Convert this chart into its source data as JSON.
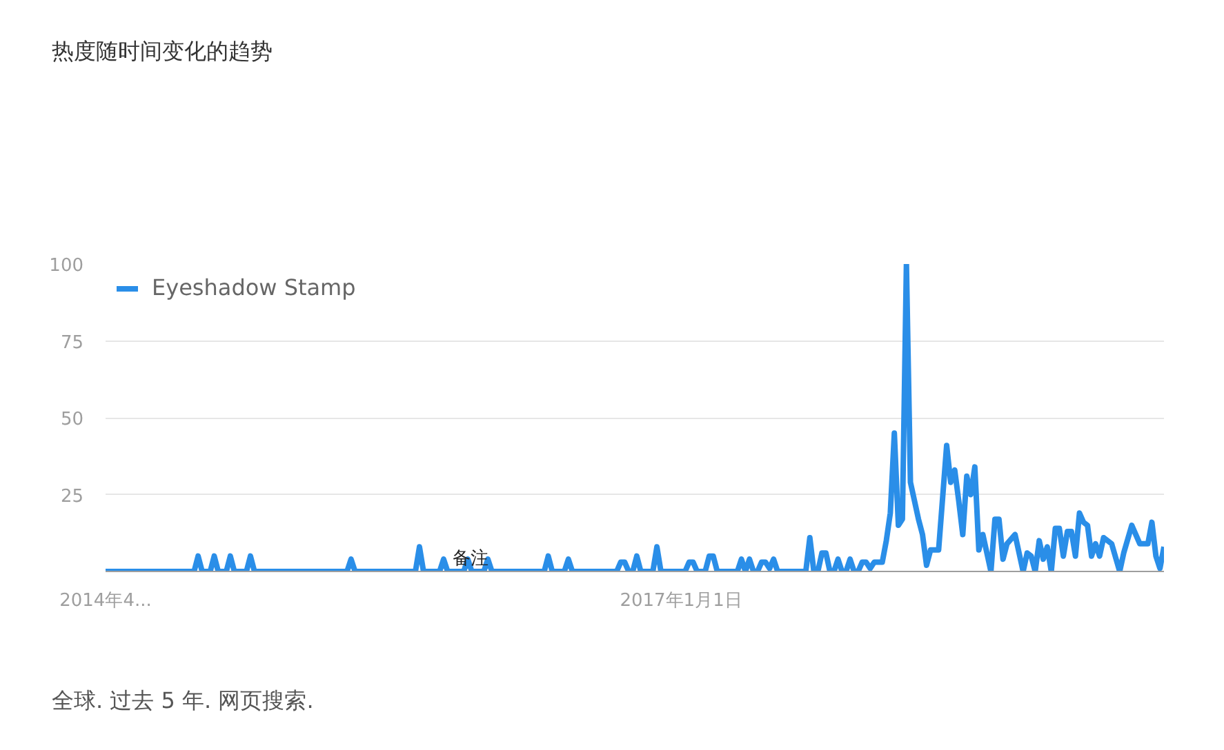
{
  "chart_data": {
    "type": "line",
    "title": "热度随时间变化的趋势",
    "x": [
      "2014-04-06",
      "2014-09-07",
      "2014-09-14",
      "2014-09-21",
      "2014-10-05",
      "2014-10-12",
      "2014-10-19",
      "2014-11-02",
      "2014-11-09",
      "2014-11-16",
      "2014-12-07",
      "2014-12-14",
      "2014-12-21",
      "2015-05-31",
      "2015-06-07",
      "2015-06-14",
      "2015-09-27",
      "2015-10-04",
      "2015-10-11",
      "2015-11-08",
      "2015-11-15",
      "2015-11-22",
      "2015-12-20",
      "2015-12-27",
      "2016-01-03",
      "2016-01-24",
      "2016-01-31",
      "2016-02-07",
      "2016-05-08",
      "2016-05-15",
      "2016-05-22",
      "2016-06-12",
      "2016-06-19",
      "2016-06-26",
      "2016-09-11",
      "2016-09-18",
      "2016-09-25",
      "2016-10-02",
      "2016-10-09",
      "2016-10-16",
      "2016-10-23",
      "2016-11-13",
      "2016-11-20",
      "2016-11-27",
      "2017-01-08",
      "2017-01-15",
      "2017-01-22",
      "2017-01-29",
      "2017-02-12",
      "2017-02-19",
      "2017-02-26",
      "2017-03-05",
      "2017-04-09",
      "2017-04-16",
      "2017-04-23",
      "2017-04-30",
      "2017-05-07",
      "2017-05-14",
      "2017-05-21",
      "2017-05-28",
      "2017-06-04",
      "2017-06-11",
      "2017-06-18",
      "2017-08-06",
      "2017-08-13",
      "2017-08-20",
      "2017-08-27",
      "2017-09-03",
      "2017-09-10",
      "2017-09-17",
      "2017-09-24",
      "2017-10-01",
      "2017-10-08",
      "2017-10-15",
      "2017-10-22",
      "2017-10-29",
      "2017-11-05",
      "2017-11-12",
      "2017-11-19",
      "2017-11-26",
      "2017-12-03",
      "2017-12-10",
      "2017-12-17",
      "2017-12-24",
      "2017-12-31",
      "2018-01-07",
      "2018-01-14",
      "2018-01-21",
      "2018-01-28",
      "2018-02-04",
      "2018-02-18",
      "2018-02-25",
      "2018-03-04",
      "2018-03-11",
      "2018-03-25",
      "2018-04-08",
      "2018-04-15",
      "2018-04-22",
      "2018-04-29",
      "2018-05-06",
      "2018-05-13",
      "2018-05-20",
      "2018-05-27",
      "2018-06-03",
      "2018-06-10",
      "2018-06-24",
      "2018-07-01",
      "2018-07-08",
      "2018-07-15",
      "2018-07-22",
      "2018-08-05",
      "2018-08-19",
      "2018-08-26",
      "2018-09-02",
      "2018-09-09",
      "2018-09-16",
      "2018-09-23",
      "2018-09-30",
      "2018-10-07",
      "2018-10-14",
      "2018-10-21",
      "2018-10-28",
      "2018-11-04",
      "2018-11-11",
      "2018-11-18",
      "2018-11-25",
      "2018-12-02",
      "2018-12-09",
      "2018-12-16",
      "2018-12-23",
      "2018-12-30",
      "2019-01-06",
      "2019-01-20",
      "2019-02-03",
      "2019-02-10",
      "2019-02-24",
      "2019-03-10",
      "2019-03-24",
      "2019-03-31",
      "2019-04-07",
      "2019-04-14",
      "2019-04-21"
    ],
    "series": [
      {
        "name": "Eyeshadow Stamp",
        "color": "#2a8ee8",
        "values": [
          0,
          0,
          5,
          0,
          0,
          5,
          0,
          0,
          5,
          0,
          0,
          5,
          0,
          0,
          4,
          0,
          0,
          8,
          0,
          0,
          4,
          0,
          0,
          4,
          0,
          0,
          4,
          0,
          0,
          5,
          0,
          0,
          4,
          0,
          0,
          3,
          3,
          0,
          0,
          5,
          0,
          0,
          8,
          0,
          0,
          3,
          3,
          0,
          0,
          5,
          5,
          0,
          0,
          4,
          0,
          4,
          0,
          0,
          3,
          3,
          1,
          4,
          0,
          0,
          11,
          0,
          0,
          6,
          6,
          0,
          0,
          4,
          0,
          0,
          4,
          0,
          0,
          3,
          3,
          1,
          3,
          3,
          3,
          10,
          19,
          45,
          15,
          17,
          100,
          29,
          17,
          12,
          2,
          7,
          7,
          41,
          29,
          33,
          23,
          12,
          31,
          25,
          34,
          7,
          12,
          0,
          17,
          17,
          4,
          9,
          12,
          0,
          6,
          5,
          0,
          10,
          4,
          8,
          0,
          14,
          14,
          5,
          13,
          13,
          5,
          19,
          16,
          15,
          5,
          9,
          5,
          11,
          9,
          0,
          6,
          15,
          9,
          9,
          16,
          5,
          1,
          8
        ]
      }
    ],
    "xlim": [
      "2014-04-06",
      "2019-04-21"
    ],
    "xticks": [
      {
        "value": "2014-04-06",
        "label": "2014年4..."
      },
      {
        "value": "2017-01-01",
        "label": "2017年1月1日"
      }
    ],
    "ylim": [
      0,
      100
    ],
    "yticks": [
      25,
      50,
      75,
      100
    ],
    "grid": "y",
    "legend": "top left",
    "line_style": "solid",
    "annotations": [
      {
        "text": "备注",
        "x": "2016-01-01",
        "y": 4
      },
      "全球. 过去 5 年. 网页搜索."
    ]
  }
}
